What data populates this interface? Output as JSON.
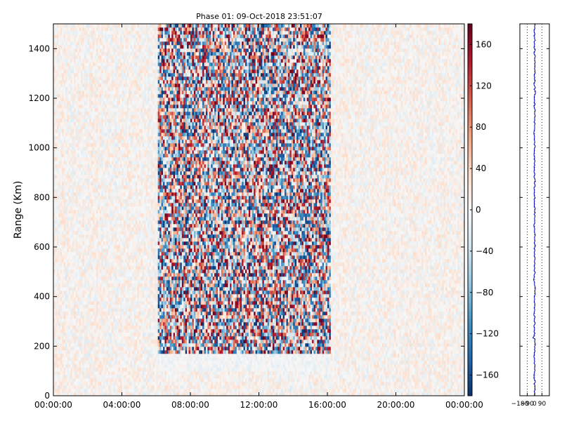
{
  "chart_data": [
    {
      "type": "heatmap",
      "title": "Phase 01: 09-Oct-2018 23:51:07",
      "ylabel": "Range (Km)",
      "xlabel": "",
      "x_ticks": [
        "00:00:00",
        "04:00:00",
        "08:00:00",
        "12:00:00",
        "16:00:00",
        "20:00:00",
        "00:00:00"
      ],
      "x_tick_hours": [
        0,
        4,
        8,
        12,
        16,
        20,
        24
      ],
      "xlim_hours": [
        0,
        24
      ],
      "y_ticks": [
        0,
        200,
        400,
        600,
        800,
        1000,
        1200,
        1400
      ],
      "ylim": [
        0,
        1500
      ],
      "colorbar": {
        "ticks": [
          160,
          120,
          80,
          40,
          0,
          -40,
          -80,
          -120,
          -160
        ],
        "range": [
          -180,
          180
        ],
        "colors": [
          "#08306b",
          "#2166ac",
          "#4393c3",
          "#92c5de",
          "#d1e5f0",
          "#f7f7f7",
          "#fddbc7",
          "#f4a582",
          "#d6604d",
          "#b2182b",
          "#67001f"
        ]
      },
      "regions": [
        {
          "name": "background",
          "x_hours": [
            0,
            24
          ],
          "range_km": [
            0,
            1500
          ],
          "phase": [
            -20,
            30
          ]
        },
        {
          "name": "active-band",
          "x_hours": [
            6.1,
            16.2
          ],
          "range_km": [
            170,
            1500
          ],
          "phase": [
            -180,
            180
          ]
        },
        {
          "name": "low-range-layer",
          "x_hours": [
            6.1,
            16.2
          ],
          "range_km": [
            100,
            170
          ],
          "phase": [
            -20,
            10
          ]
        }
      ]
    },
    {
      "type": "line",
      "x_ticks": [
        "-180",
        "-90",
        "0",
        "90"
      ],
      "x_tick_values": [
        -180,
        -90,
        0,
        90
      ],
      "xlim": [
        -180,
        180
      ],
      "ylim": [
        0,
        1500
      ],
      "line_color": "#0000bb",
      "profile_x_range": [
        -10,
        10
      ]
    }
  ]
}
